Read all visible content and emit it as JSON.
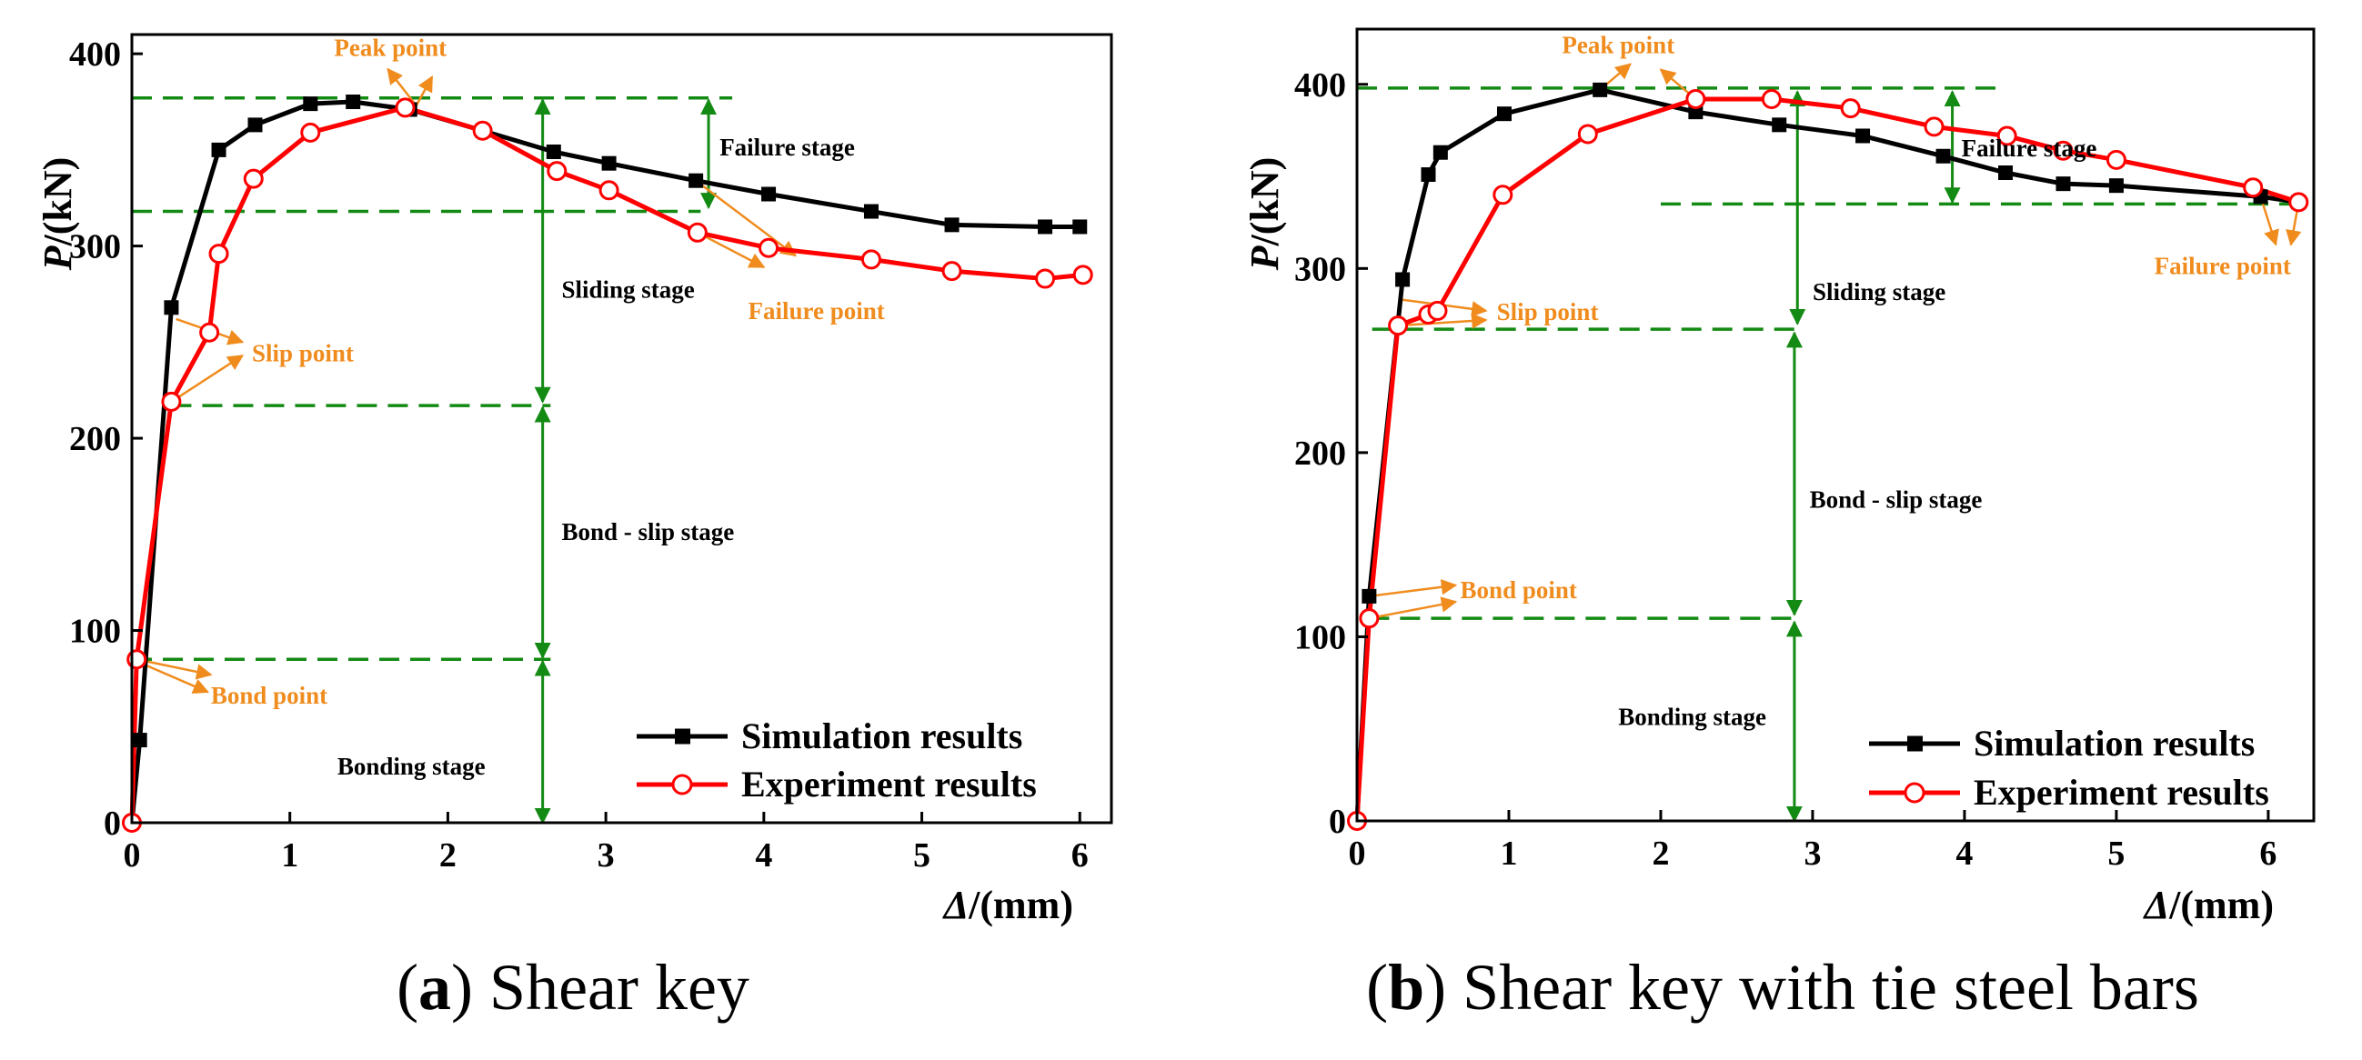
{
  "chart_data": [
    {
      "type": "line",
      "panel_letter": "a",
      "caption": "Shear key",
      "xlabel_var": "Δ",
      "xlabel_unit": "/(mm)",
      "ylabel_var": "P",
      "ylabel_unit": "/(kN)",
      "xlim": [
        0,
        6.2
      ],
      "ylim": [
        0,
        410
      ],
      "xticks": [
        0,
        1,
        2,
        3,
        4,
        5,
        6
      ],
      "yticks": [
        0,
        100,
        200,
        300,
        400
      ],
      "series": [
        {
          "name": "Simulation results",
          "color": "#000000",
          "marker": "square",
          "x": [
            0.0,
            0.05,
            0.25,
            0.55,
            0.78,
            1.13,
            1.4,
            1.76,
            2.22,
            2.67,
            3.02,
            3.57,
            4.03,
            4.68,
            5.19,
            5.78,
            6.0
          ],
          "y": [
            0,
            43,
            268,
            350,
            363,
            374,
            375,
            371,
            360,
            349,
            343,
            334,
            327,
            318,
            311,
            310,
            310
          ]
        },
        {
          "name": "Experiment results",
          "color": "#ff0000",
          "marker": "open-circle",
          "x": [
            0.0,
            0.03,
            0.25,
            0.49,
            0.55,
            0.77,
            1.13,
            1.73,
            2.22,
            2.69,
            3.02,
            3.58,
            4.03,
            4.68,
            5.19,
            5.78,
            6.02
          ],
          "y": [
            0,
            85,
            219,
            255,
            296,
            335,
            359,
            372,
            360,
            339,
            329,
            307,
            299,
            293,
            287,
            283,
            285
          ]
        }
      ],
      "dashed_levels": [
        85,
        217,
        318,
        377
      ],
      "stages": [
        "Bonding stage",
        "Bond - slip stage",
        "Sliding stage",
        "Failure stage"
      ],
      "annotations": [
        "Peak point",
        "Slip point",
        "Bond point",
        "Failure point"
      ],
      "legend": "bottom-right"
    },
    {
      "type": "line",
      "panel_letter": "b",
      "caption": "Shear key with tie steel bars",
      "xlabel_var": "Δ",
      "xlabel_unit": "/(mm)",
      "ylabel_var": "P",
      "ylabel_unit": "/(kN)",
      "xlim": [
        0,
        6.3
      ],
      "ylim": [
        0,
        430
      ],
      "xticks": [
        0,
        1,
        2,
        3,
        4,
        5,
        6
      ],
      "yticks": [
        0,
        100,
        200,
        300,
        400
      ],
      "series": [
        {
          "name": "Simulation results",
          "color": "#000000",
          "marker": "square",
          "x": [
            0.0,
            0.08,
            0.3,
            0.47,
            0.55,
            0.97,
            1.6,
            2.23,
            2.78,
            3.33,
            3.86,
            4.27,
            4.65,
            5.0,
            5.95,
            6.2
          ],
          "y": [
            0,
            122,
            294,
            351,
            363,
            384,
            397,
            385,
            378,
            372,
            361,
            352,
            346,
            345,
            339,
            336
          ]
        },
        {
          "name": "Experiment results",
          "color": "#ff0000",
          "marker": "open-circle",
          "x": [
            0.0,
            0.08,
            0.27,
            0.47,
            0.53,
            0.96,
            1.52,
            2.23,
            2.73,
            3.25,
            3.8,
            4.28,
            4.65,
            5.0,
            5.9,
            6.2
          ],
          "y": [
            0,
            110,
            269,
            275,
            277,
            340,
            373,
            392,
            392,
            387,
            377,
            372,
            364,
            359,
            344,
            336
          ]
        }
      ],
      "dashed_levels": [
        110,
        267,
        335,
        398
      ],
      "stages": [
        "Bonding stage",
        "Bond - slip stage",
        "Sliding stage",
        "Failure stage"
      ],
      "annotations": [
        "Peak point",
        "Slip point",
        "Bond point",
        "Failure point"
      ],
      "legend": "bottom-right"
    }
  ]
}
